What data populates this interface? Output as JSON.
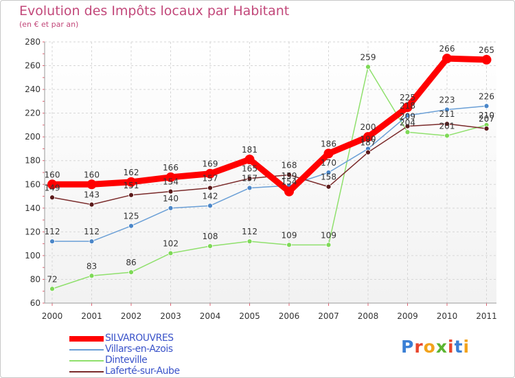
{
  "chart_data": {
    "type": "line",
    "title": "Evolution des Impôts locaux par Habitant",
    "subtitle": "(en € et par an)",
    "xlabel": "",
    "ylabel": "",
    "ylim": [
      60,
      280
    ],
    "yticks": [
      60,
      80,
      100,
      120,
      140,
      160,
      180,
      200,
      220,
      240,
      260,
      280
    ],
    "categories": [
      "2000",
      "2001",
      "2002",
      "2003",
      "2004",
      "2005",
      "2006",
      "2007",
      "2008",
      "2009",
      "2010",
      "2011"
    ],
    "grid": true,
    "legend_position": "bottom-left",
    "series": [
      {
        "name": "SILVAROUVRES",
        "color": "#ff0000",
        "values": [
          160,
          160,
          162,
          166,
          169,
          181,
          154,
          186,
          200,
          225,
          266,
          265
        ]
      },
      {
        "name": "Villars-en-Azois",
        "color": "#6a9fd6",
        "values": [
          112,
          112,
          125,
          140,
          142,
          157,
          159,
          170,
          190,
          218,
          223,
          226
        ]
      },
      {
        "name": "Dinteville",
        "color": "#8fe06c",
        "values": [
          72,
          83,
          86,
          102,
          108,
          112,
          109,
          109,
          259,
          204,
          201,
          210
        ]
      },
      {
        "name": "Laferté-sur-Aube",
        "color": "#7a2a2a",
        "values": [
          149,
          143,
          151,
          154,
          157,
          165,
          168,
          158,
          187,
          209,
          211,
          207
        ]
      }
    ]
  },
  "logo": {
    "text": "Proxiti"
  }
}
